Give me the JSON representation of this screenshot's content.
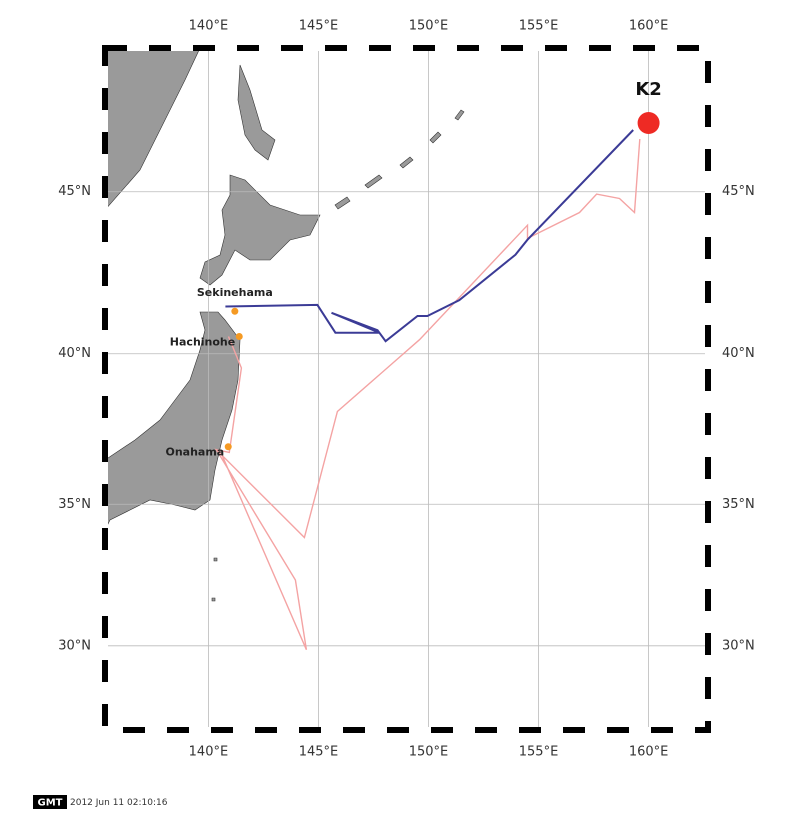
{
  "map": {
    "lonlim": [
      135.3,
      162.7
    ],
    "latlim": [
      26.9,
      49.1
    ],
    "lon_ticks": [
      {
        "value": 140,
        "label": "140°E"
      },
      {
        "value": 145,
        "label": "145°E"
      },
      {
        "value": 150,
        "label": "150°E"
      },
      {
        "value": 155,
        "label": "155°E"
      },
      {
        "value": 160,
        "label": "160°E"
      }
    ],
    "lat_ticks": [
      {
        "value": 30,
        "label": "30°N"
      },
      {
        "value": 35,
        "label": "35°N"
      },
      {
        "value": 40,
        "label": "40°N"
      },
      {
        "value": 45,
        "label": "45°N"
      }
    ],
    "grid": true,
    "tracks": [
      {
        "color": "#f4a3a3",
        "lon": [
          140.91,
          141.5,
          140.95,
          140.36,
          144.36,
          145.86,
          149.59,
          154.5,
          154.5,
          156.86,
          157.64,
          158.68,
          159.36,
          159.6,
          null,
          140.36,
          143.95,
          144.45,
          140.6
        ],
        "lat": [
          40.55,
          39.54,
          36.76,
          36.85,
          33.85,
          38.12,
          40.45,
          44.0,
          43.6,
          44.38,
          44.93,
          44.8,
          44.38,
          46.54,
          null,
          36.85,
          32.36,
          29.86,
          36.7
        ]
      },
      {
        "color": "#3b3b96",
        "lon": [
          140.77,
          144.95,
          145.77,
          147.77,
          145.59,
          147.68,
          148.05,
          149.5,
          149.95,
          151.4,
          153.95,
          154.5,
          159.3
        ],
        "lat": [
          41.5,
          41.55,
          40.67,
          40.67,
          41.3,
          40.75,
          40.4,
          41.2,
          41.2,
          41.7,
          43.1,
          43.56,
          46.8
        ]
      }
    ],
    "places": [
      {
        "name": "Sekinehama",
        "lon": 141.2,
        "lat": 41.35,
        "color": "#f59a23"
      },
      {
        "name": "Hachinohe",
        "lon": 141.4,
        "lat": 40.55,
        "color": "#f59a23"
      },
      {
        "name": "Onahama",
        "lon": 140.9,
        "lat": 36.95,
        "color": "#f59a23"
      },
      {
        "name": "K2",
        "lon": 160.0,
        "lat": 47.0,
        "color": "#ee2a24"
      }
    ]
  },
  "footer": {
    "logo": "GMT",
    "timestamp": "2012 Jun 11 02:10:16"
  }
}
